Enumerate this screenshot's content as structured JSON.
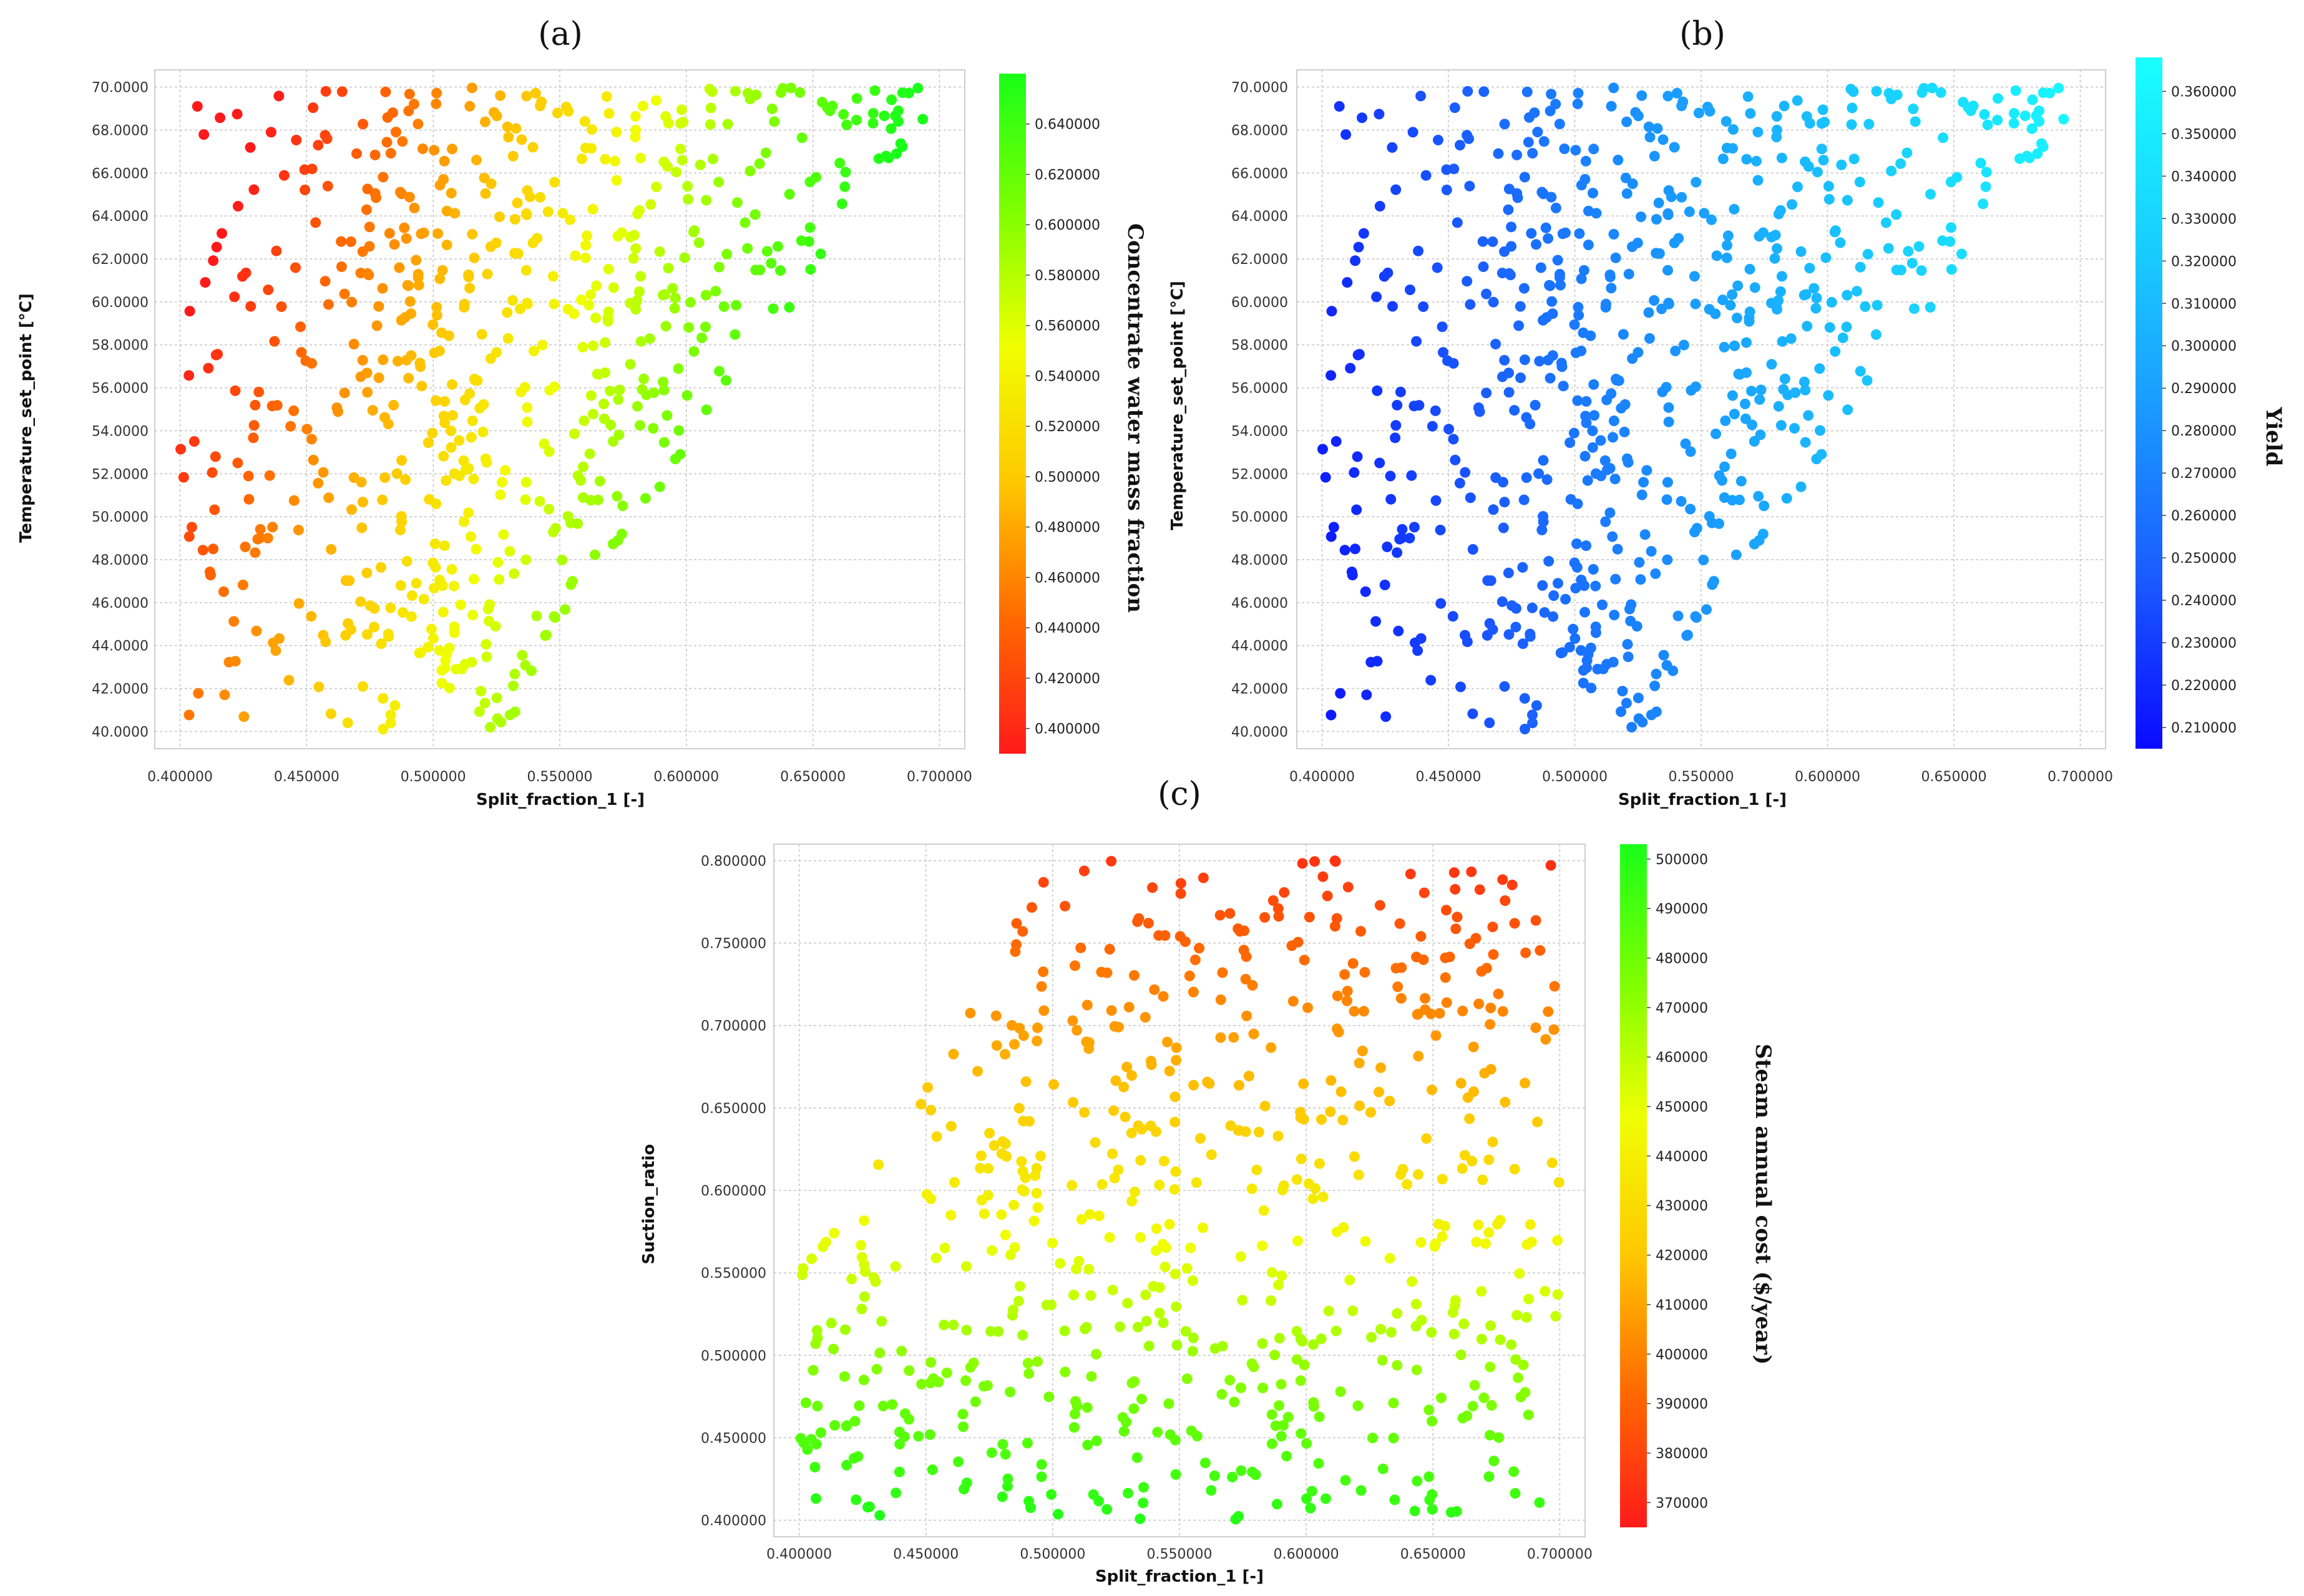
{
  "panels": [
    {
      "label": "(a)"
    },
    {
      "label": "(b)"
    },
    {
      "label": "(c)"
    }
  ],
  "chart_data": [
    {
      "type": "scatter",
      "panel": "(a)",
      "xlabel": "Split_fraction_1 [-]",
      "ylabel": "Temperature_set_point [°C]",
      "xlim": [
        0.39,
        0.71
      ],
      "ylim": [
        39.2,
        70.8
      ],
      "xticks": [
        "0.400000",
        "0.450000",
        "0.500000",
        "0.550000",
        "0.600000",
        "0.650000",
        "0.700000"
      ],
      "xtick_values": [
        0.4,
        0.45,
        0.5,
        0.55,
        0.6,
        0.65,
        0.7
      ],
      "yticks": [
        "40.0000",
        "42.0000",
        "44.0000",
        "46.0000",
        "48.0000",
        "50.0000",
        "52.0000",
        "54.0000",
        "56.0000",
        "58.0000",
        "60.0000",
        "62.0000",
        "64.0000",
        "66.0000",
        "68.0000",
        "70.0000"
      ],
      "ytick_values": [
        40,
        42,
        44,
        46,
        48,
        50,
        52,
        54,
        56,
        58,
        60,
        62,
        64,
        66,
        68,
        70
      ],
      "colorbar": {
        "label": "Concentrate water mass fraction",
        "min": 0.39,
        "max": 0.66,
        "ticks": [
          "0.400000",
          "0.420000",
          "0.440000",
          "0.460000",
          "0.480000",
          "0.500000",
          "0.520000",
          "0.540000",
          "0.560000",
          "0.580000",
          "0.600000",
          "0.620000",
          "0.640000"
        ],
        "tick_values": [
          0.4,
          0.42,
          0.44,
          0.46,
          0.48,
          0.5,
          0.52,
          0.54,
          0.56,
          0.58,
          0.6,
          0.62,
          0.64
        ],
        "colormap": [
          "#ff1a1a",
          "#ff6a00",
          "#ffc800",
          "#f0ff00",
          "#7dff00",
          "#19ff19"
        ]
      },
      "grid": true,
      "points_count": 650,
      "point_color": "colored by colorbar value",
      "data_region": "x in [0.40, 0.70], T in [40, 70]; lower bound of T rises with x above ~0.54"
    },
    {
      "type": "scatter",
      "panel": "(b)",
      "xlabel": "Split_fraction_1 [-]",
      "ylabel": "Temperature_set_point [°C]",
      "xlim": [
        0.39,
        0.71
      ],
      "ylim": [
        39.2,
        70.8
      ],
      "xticks": [
        "0.400000",
        "0.450000",
        "0.500000",
        "0.550000",
        "0.600000",
        "0.650000",
        "0.700000"
      ],
      "xtick_values": [
        0.4,
        0.45,
        0.5,
        0.55,
        0.6,
        0.65,
        0.7
      ],
      "yticks": [
        "40.0000",
        "42.0000",
        "44.0000",
        "46.0000",
        "48.0000",
        "50.0000",
        "52.0000",
        "54.0000",
        "56.0000",
        "58.0000",
        "60.0000",
        "62.0000",
        "64.0000",
        "66.0000",
        "68.0000",
        "70.0000"
      ],
      "ytick_values": [
        40,
        42,
        44,
        46,
        48,
        50,
        52,
        54,
        56,
        58,
        60,
        62,
        64,
        66,
        68,
        70
      ],
      "colorbar": {
        "label": "Yield",
        "min": 0.205,
        "max": 0.368,
        "ticks": [
          "0.210000",
          "0.220000",
          "0.230000",
          "0.240000",
          "0.250000",
          "0.260000",
          "0.270000",
          "0.280000",
          "0.290000",
          "0.300000",
          "0.310000",
          "0.320000",
          "0.330000",
          "0.340000",
          "0.350000",
          "0.360000"
        ],
        "tick_values": [
          0.21,
          0.22,
          0.23,
          0.24,
          0.25,
          0.26,
          0.27,
          0.28,
          0.29,
          0.3,
          0.31,
          0.32,
          0.33,
          0.34,
          0.35,
          0.36
        ],
        "colormap": [
          "#0a0aff",
          "#1a5cff",
          "#1a9cff",
          "#19d2ff",
          "#19ffff"
        ]
      },
      "grid": true,
      "points_count": 650,
      "data_region": "same sampled points as (a)"
    },
    {
      "type": "scatter",
      "panel": "(c)",
      "xlabel": "Split_fraction_1 [-]",
      "ylabel": "Suction_ratio",
      "xlim": [
        0.39,
        0.71
      ],
      "ylim": [
        0.39,
        0.81
      ],
      "xticks": [
        "0.400000",
        "0.450000",
        "0.500000",
        "0.550000",
        "0.600000",
        "0.650000",
        "0.700000"
      ],
      "xtick_values": [
        0.4,
        0.45,
        0.5,
        0.55,
        0.6,
        0.65,
        0.7
      ],
      "yticks": [
        "0.400000",
        "0.450000",
        "0.500000",
        "0.550000",
        "0.600000",
        "0.650000",
        "0.700000",
        "0.750000",
        "0.800000"
      ],
      "ytick_values": [
        0.4,
        0.45,
        0.5,
        0.55,
        0.6,
        0.65,
        0.7,
        0.75,
        0.8
      ],
      "colorbar": {
        "label": "Steam annual cost ($/year)",
        "min": 365000,
        "max": 503000,
        "ticks": [
          "370000",
          "380000",
          "390000",
          "400000",
          "410000",
          "420000",
          "430000",
          "440000",
          "450000",
          "460000",
          "470000",
          "480000",
          "490000",
          "500000"
        ],
        "tick_values": [
          370000,
          380000,
          390000,
          400000,
          410000,
          420000,
          430000,
          440000,
          450000,
          460000,
          470000,
          480000,
          490000,
          500000
        ],
        "colormap": [
          "#ff1a1a",
          "#ff6a00",
          "#ffc800",
          "#f0ff00",
          "#7dff00",
          "#19ff19"
        ]
      },
      "grid": true,
      "points_count": 650,
      "data_region": "x in [0.40, 0.70], suction ratio in [0.40, 0.80]; upper boundary rises from ~0.55 at x=0.40 to 0.80 at x>=0.50"
    }
  ]
}
